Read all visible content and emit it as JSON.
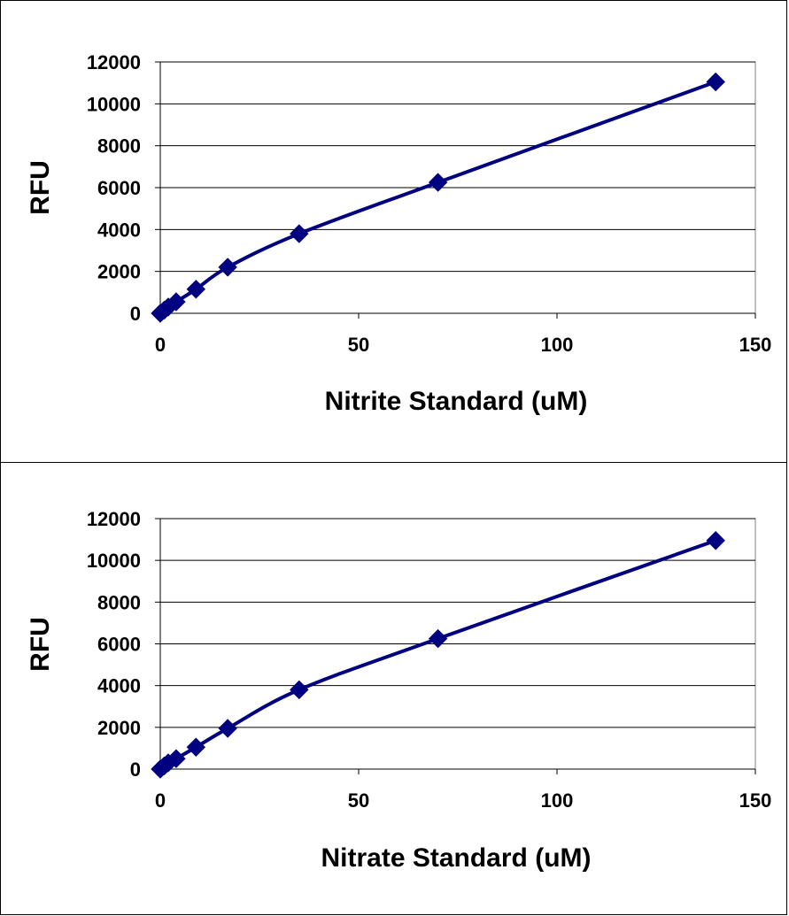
{
  "chart_data": [
    {
      "type": "scatter",
      "title": "",
      "xlabel": "Nitrite Standard (uM)",
      "ylabel": "RFU",
      "xlim": [
        0,
        150
      ],
      "ylim": [
        0,
        12000
      ],
      "x_ticks": [
        "0",
        "50",
        "100",
        "150"
      ],
      "y_ticks": [
        "0",
        "2000",
        "4000",
        "6000",
        "8000",
        "10000",
        "12000"
      ],
      "grid": "horizontal",
      "line": "smoothed",
      "marker": "diamond",
      "color": "#000080",
      "series": [
        {
          "x": [
            0,
            1,
            2,
            4,
            9,
            17,
            35,
            70,
            140
          ],
          "y": [
            0,
            150,
            300,
            550,
            1150,
            2200,
            3800,
            6250,
            11050
          ]
        }
      ]
    },
    {
      "type": "scatter",
      "title": "",
      "xlabel": "Nitrate Standard (uM)",
      "ylabel": "RFU",
      "xlim": [
        0,
        150
      ],
      "ylim": [
        0,
        12000
      ],
      "x_ticks": [
        "0",
        "50",
        "100",
        "150"
      ],
      "y_ticks": [
        "0",
        "2000",
        "4000",
        "6000",
        "8000",
        "10000",
        "12000"
      ],
      "grid": "horizontal",
      "line": "smoothed",
      "marker": "diamond",
      "color": "#000080",
      "series": [
        {
          "x": [
            0,
            1,
            2,
            4,
            9,
            17,
            35,
            70,
            140
          ],
          "y": [
            0,
            150,
            300,
            500,
            1050,
            1950,
            3800,
            6250,
            10950
          ]
        }
      ]
    }
  ]
}
